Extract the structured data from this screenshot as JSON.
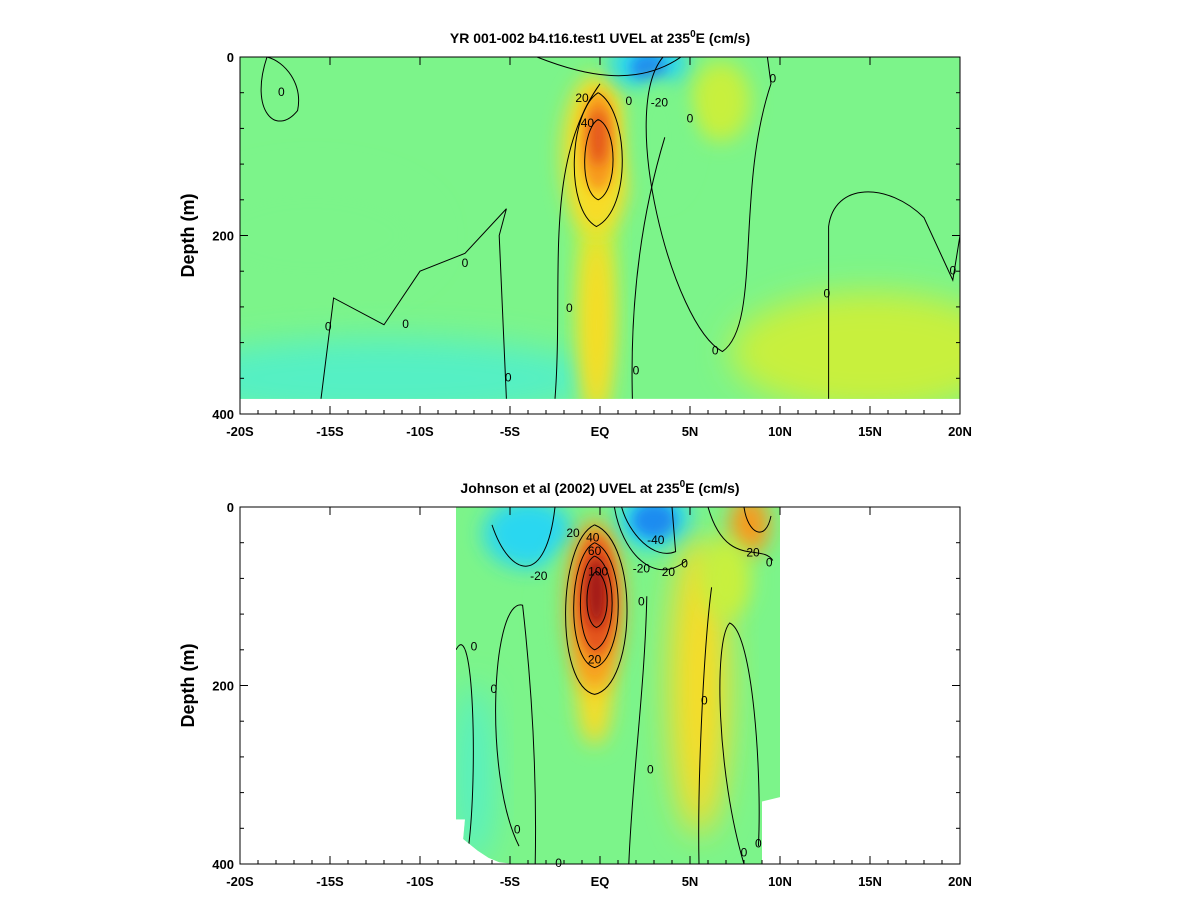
{
  "chart_data": [
    {
      "type": "heatmap",
      "subtype": "filled-contour section",
      "title": "YR 001-002 b4.t16.test1 UVEL at 235",
      "title_sup": "0",
      "title_end": "E (cm/s)",
      "ylabel": "Depth (m)",
      "xlabel": "",
      "x_ticks": [
        "-20S",
        "-15S",
        "-10S",
        "-5S",
        "EQ",
        "5N",
        "10N",
        "15N",
        "20N"
      ],
      "y_ticks": [
        "0",
        "200",
        "400"
      ],
      "xlim": [
        -20,
        20
      ],
      "ylim": [
        0,
        400
      ],
      "data_depth_max": 383,
      "contour_labels": [
        {
          "text": "-20",
          "lat": 3.3,
          "depth": 52
        },
        {
          "text": "40",
          "lat": -0.7,
          "depth": 75
        },
        {
          "text": "20",
          "lat": -1.0,
          "depth": 47
        },
        {
          "text": "0",
          "lat": 1.6,
          "depth": 50
        },
        {
          "text": "0",
          "lat": 5.0,
          "depth": 70
        },
        {
          "text": "0",
          "lat": 9.6,
          "depth": 25
        },
        {
          "text": "0",
          "lat": -17.7,
          "depth": 40
        },
        {
          "text": "0",
          "lat": -15.1,
          "depth": 303
        },
        {
          "text": "0",
          "lat": -10.8,
          "depth": 300
        },
        {
          "text": "0",
          "lat": -7.5,
          "depth": 232
        },
        {
          "text": "0",
          "lat": -5.1,
          "depth": 360
        },
        {
          "text": "0",
          "lat": -1.7,
          "depth": 282
        },
        {
          "text": "0",
          "lat": 2.0,
          "depth": 352
        },
        {
          "text": "0",
          "lat": 6.4,
          "depth": 330
        },
        {
          "text": "0",
          "lat": 12.6,
          "depth": 266
        },
        {
          "text": "0",
          "lat": 19.6,
          "depth": 240
        }
      ],
      "features": [
        {
          "name": "EUC core",
          "lat": -0.2,
          "depth": 85,
          "max_u": 50
        },
        {
          "name": "SEC surface westward",
          "lat": 2.6,
          "depth": 10,
          "min_u": -35
        }
      ]
    },
    {
      "type": "heatmap",
      "subtype": "filled-contour section",
      "title": "Johnson et al (2002) UVEL at 235",
      "title_sup": "0",
      "title_end": "E (cm/s)",
      "ylabel": "Depth (m)",
      "xlabel": "",
      "x_ticks": [
        "-20S",
        "-15S",
        "-10S",
        "-5S",
        "EQ",
        "5N",
        "10N",
        "15N",
        "20N"
      ],
      "y_ticks": [
        "0",
        "200",
        "400"
      ],
      "xlim": [
        -20,
        20
      ],
      "ylim": [
        0,
        400
      ],
      "data_lat_range": [
        -8,
        10
      ],
      "contour_labels": [
        {
          "text": "20",
          "lat": -1.5,
          "depth": 30
        },
        {
          "text": "40",
          "lat": -0.4,
          "depth": 35
        },
        {
          "text": "60",
          "lat": -0.3,
          "depth": 50
        },
        {
          "text": "100",
          "lat": -0.1,
          "depth": 73
        },
        {
          "text": "-40",
          "lat": 3.1,
          "depth": 38
        },
        {
          "text": "-20",
          "lat": -3.4,
          "depth": 78
        },
        {
          "text": "20",
          "lat": -0.3,
          "depth": 172
        },
        {
          "text": "20",
          "lat": 3.8,
          "depth": 74
        },
        {
          "text": "20",
          "lat": 8.5,
          "depth": 52
        },
        {
          "text": "-20",
          "lat": 2.3,
          "depth": 70
        },
        {
          "text": "0",
          "lat": 4.7,
          "depth": 64
        },
        {
          "text": "0",
          "lat": 9.4,
          "depth": 63
        },
        {
          "text": "0",
          "lat": 2.3,
          "depth": 107
        },
        {
          "text": "0",
          "lat": -7.0,
          "depth": 157
        },
        {
          "text": "0",
          "lat": -5.9,
          "depth": 205
        },
        {
          "text": "0",
          "lat": 5.8,
          "depth": 218
        },
        {
          "text": "0",
          "lat": 2.8,
          "depth": 295
        },
        {
          "text": "0",
          "lat": -4.6,
          "depth": 362
        },
        {
          "text": "0",
          "lat": 8.0,
          "depth": 388
        },
        {
          "text": "0",
          "lat": 8.8,
          "depth": 378
        },
        {
          "text": "0",
          "lat": -2.3,
          "depth": 400
        }
      ],
      "features": [
        {
          "name": "EUC core",
          "lat": -0.3,
          "depth": 100,
          "max_u": 110
        },
        {
          "name": "SEC surface westward",
          "lat": 2.8,
          "depth": 10,
          "min_u": -50
        }
      ]
    }
  ]
}
